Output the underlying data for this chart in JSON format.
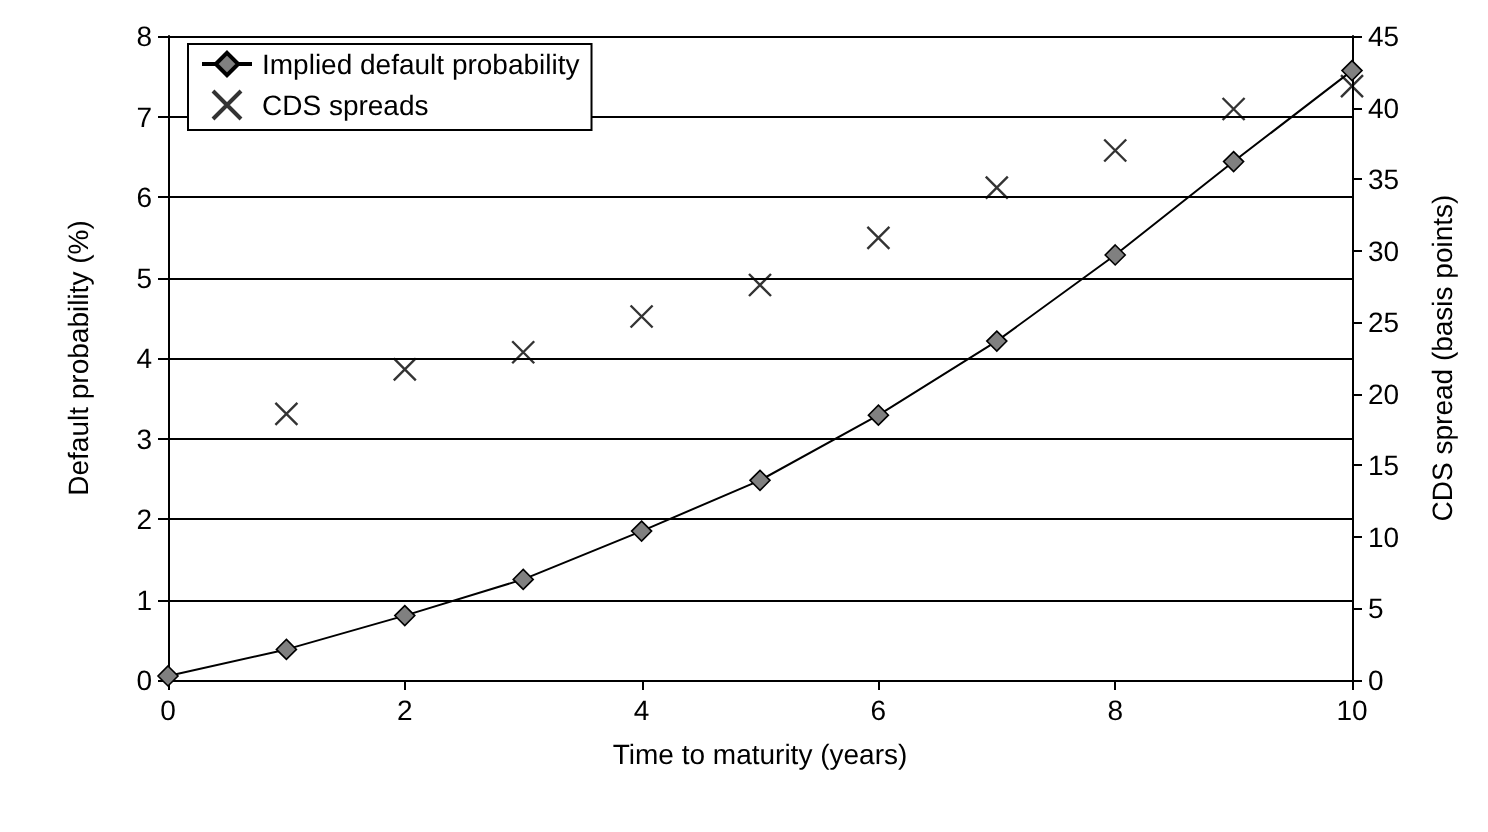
{
  "chart_data": {
    "type": "line",
    "xlabel": "Time to maturity (years)",
    "ylabel": "Default probability (%)",
    "y2label": "CDS spread (basis points)",
    "xlim": [
      0,
      10
    ],
    "xticks": [
      0,
      2,
      4,
      6,
      8,
      10
    ],
    "ylim": [
      0,
      8
    ],
    "yticks": [
      0,
      1,
      2,
      3,
      4,
      5,
      6,
      7,
      8
    ],
    "y2lim": [
      0,
      45
    ],
    "y2ticks": [
      0,
      5,
      10,
      15,
      20,
      25,
      30,
      35,
      40,
      45
    ],
    "grid": "y",
    "legend": "top left",
    "series": [
      {
        "name": "Implied default probability",
        "marker": "diamond",
        "color": "#808080",
        "x": [
          0,
          1,
          2,
          3,
          4,
          5,
          6,
          7,
          8,
          9,
          10
        ],
        "values": [
          0.05,
          0.38,
          0.8,
          1.25,
          1.85,
          2.48,
          3.29,
          4.21,
          5.28,
          6.44,
          7.57
        ]
      },
      {
        "name": "CDS spreads",
        "type": "scatter",
        "marker": "cross",
        "axis": "y2",
        "color": "#000000",
        "x": [
          1,
          2,
          3,
          4,
          5,
          6,
          7,
          8,
          9,
          10
        ],
        "values": [
          18.6,
          21.7,
          22.9,
          25.4,
          27.6,
          30.9,
          34.4,
          37.0,
          39.9,
          41.5
        ]
      }
    ]
  }
}
